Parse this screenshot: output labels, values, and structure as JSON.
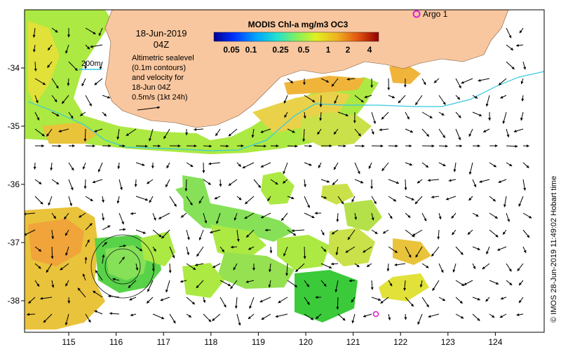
{
  "map": {
    "date": "18-Jun-2019",
    "time": "04Z",
    "legend_title": "MODIS Chl-a mg/m3 OC3",
    "legend_ticks": [
      "0.05",
      "0.1",
      "0.25",
      "0.5",
      "1",
      "2",
      "4"
    ],
    "note_lines": [
      "Altimetric sealevel",
      "(0.1m contours)",
      "and velocity for",
      "18-Jun 04Z",
      "0.5m/s (1kt 24h)"
    ],
    "depth_label": "200m",
    "argo_label": "Argo 1",
    "footer": "© IMOS 28-Jun-2019 11:49:02 Hobart time",
    "x_ticks": [
      "115",
      "116",
      "117",
      "118",
      "119",
      "120",
      "121",
      "122",
      "123",
      "124"
    ],
    "y_ticks": [
      "-34",
      "-35",
      "-36",
      "-37",
      "-38"
    ],
    "colors": {
      "land": "#f9c79f",
      "shelf_contour": "#35c9e0",
      "argo_marker": "#e020d0",
      "colorbar": [
        "#00008f",
        "#0030ff",
        "#00a0ff",
        "#20e0d0",
        "#80f060",
        "#e0f020",
        "#f0b020",
        "#e05010",
        "#900000"
      ]
    }
  }
}
